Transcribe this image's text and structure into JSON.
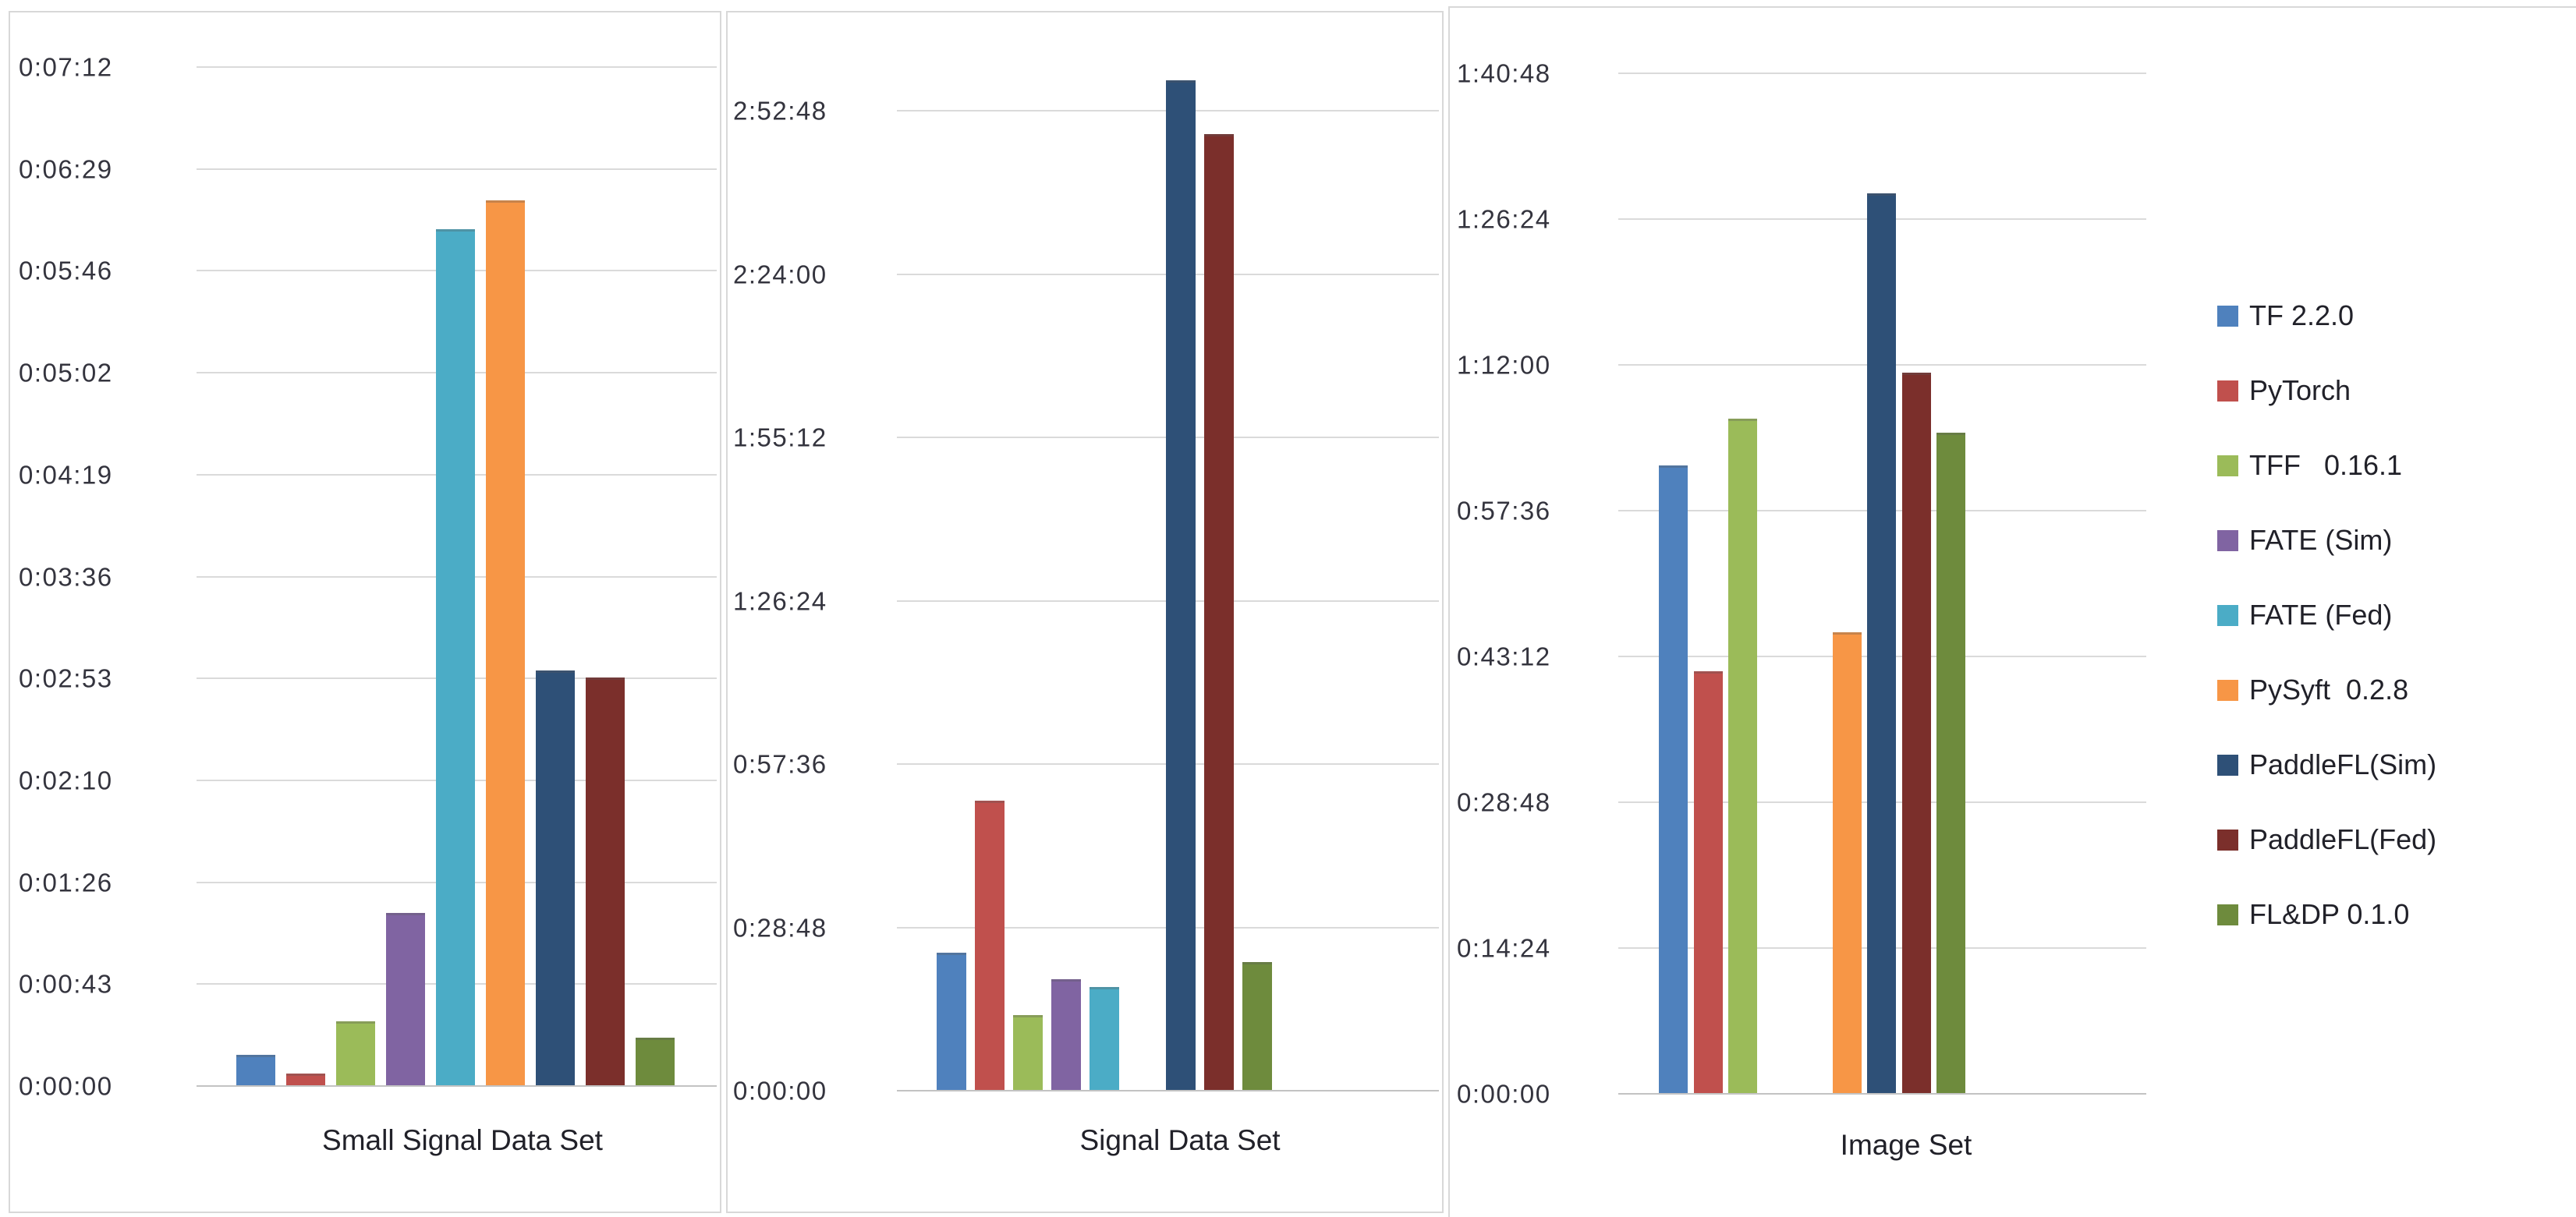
{
  "page": {
    "background": "#ffffff",
    "unit": "h:mm:ss"
  },
  "legend": {
    "position": "right",
    "items": [
      {
        "label": "TF 2.2.0",
        "color": "#4F81BD"
      },
      {
        "label": "PyTorch",
        "color": "#C0504D"
      },
      {
        "label": "TFF   0.16.1",
        "color": "#9BBB59"
      },
      {
        "label": "FATE (Sim)",
        "color": "#8064A2"
      },
      {
        "label": "FATE (Fed)",
        "color": "#4BACC6"
      },
      {
        "label": "PySyft  0.2.8",
        "color": "#F79646"
      },
      {
        "label": "PaddleFL(Sim)",
        "color": "#2E5077"
      },
      {
        "label": "PaddleFL(Fed)",
        "color": "#7B2F2B"
      },
      {
        "label": "FL&DP 0.1.0",
        "color": "#6E8B3D"
      }
    ]
  },
  "chart_data": [
    {
      "type": "bar",
      "title": "Small Signal Data Set",
      "categories": [
        "Small Signal Data Set"
      ],
      "grid": true,
      "y_axis": {
        "min": "0:00:00",
        "max": "0:07:12",
        "tick_step_seconds": 43.2,
        "ticks": [
          "0:00:00",
          "0:00:43",
          "0:01:26",
          "0:02:10",
          "0:02:53",
          "0:03:36",
          "0:04:19",
          "0:05:02",
          "0:05:46",
          "0:06:29",
          "0:07:12"
        ]
      },
      "series": [
        {
          "name": "TF 2.2.0",
          "seconds": 13,
          "time": "0:00:13"
        },
        {
          "name": "PyTorch",
          "seconds": 5,
          "time": "0:00:05"
        },
        {
          "name": "TFF 0.16.1",
          "seconds": 27,
          "time": "0:00:27"
        },
        {
          "name": "FATE (Sim)",
          "seconds": 73,
          "time": "0:01:13"
        },
        {
          "name": "FATE (Fed)",
          "seconds": 363,
          "time": "0:06:03"
        },
        {
          "name": "PySyft 0.2.8",
          "seconds": 375,
          "time": "0:06:15"
        },
        {
          "name": "PaddleFL(Sim)",
          "seconds": 176,
          "time": "0:02:56"
        },
        {
          "name": "PaddleFL(Fed)",
          "seconds": 173,
          "time": "0:02:53"
        },
        {
          "name": "FL&DP 0.1.0",
          "seconds": 20,
          "time": "0:00:20"
        }
      ]
    },
    {
      "type": "bar",
      "title": "Signal Data Set",
      "categories": [
        "Signal Data Set"
      ],
      "grid": true,
      "y_axis": {
        "min": "0:00:00",
        "max": "2:52:48",
        "tick_step_seconds": 1728,
        "ticks": [
          "0:00:00",
          "0:28:48",
          "0:57:36",
          "1:26:24",
          "1:55:12",
          "2:24:00",
          "2:52:48"
        ]
      },
      "series": [
        {
          "name": "TF 2.2.0",
          "seconds": 1455,
          "time": "0:24:15"
        },
        {
          "name": "PyTorch",
          "seconds": 3060,
          "time": "0:51:00"
        },
        {
          "name": "TFF 0.16.1",
          "seconds": 795,
          "time": "0:13:15"
        },
        {
          "name": "FATE (Sim)",
          "seconds": 1170,
          "time": "0:19:30"
        },
        {
          "name": "FATE (Fed)",
          "seconds": 1090,
          "time": "0:18:10"
        },
        {
          "name": "PySyft 0.2.8",
          "seconds": null,
          "time": null
        },
        {
          "name": "PaddleFL(Sim)",
          "seconds": 10680,
          "time": "2:58:00"
        },
        {
          "name": "PaddleFL(Fed)",
          "seconds": 10110,
          "time": "2:48:30"
        },
        {
          "name": "FL&DP 0.1.0",
          "seconds": 1350,
          "time": "0:22:30"
        }
      ]
    },
    {
      "type": "bar",
      "title": "Image Set",
      "categories": [
        "Image Set"
      ],
      "grid": true,
      "y_axis": {
        "min": "0:00:00",
        "max": "1:40:48",
        "tick_step_seconds": 864,
        "ticks": [
          "0:00:00",
          "0:14:24",
          "0:28:48",
          "0:43:12",
          "0:57:36",
          "1:12:00",
          "1:26:24",
          "1:40:48"
        ]
      },
      "series": [
        {
          "name": "TF 2.2.0",
          "seconds": 3720,
          "time": "1:02:00"
        },
        {
          "name": "PyTorch",
          "seconds": 2500,
          "time": "0:41:40"
        },
        {
          "name": "TFF 0.16.1",
          "seconds": 3995,
          "time": "1:06:35"
        },
        {
          "name": "FATE (Sim)",
          "seconds": null,
          "time": null
        },
        {
          "name": "FATE (Fed)",
          "seconds": null,
          "time": null
        },
        {
          "name": "PySyft 0.2.8",
          "seconds": 2730,
          "time": "0:45:30"
        },
        {
          "name": "PaddleFL(Sim)",
          "seconds": 5330,
          "time": "1:28:50"
        },
        {
          "name": "PaddleFL(Fed)",
          "seconds": 4270,
          "time": "1:11:10"
        },
        {
          "name": "FL&DP 0.1.0",
          "seconds": 3915,
          "time": "1:05:15"
        }
      ]
    }
  ]
}
